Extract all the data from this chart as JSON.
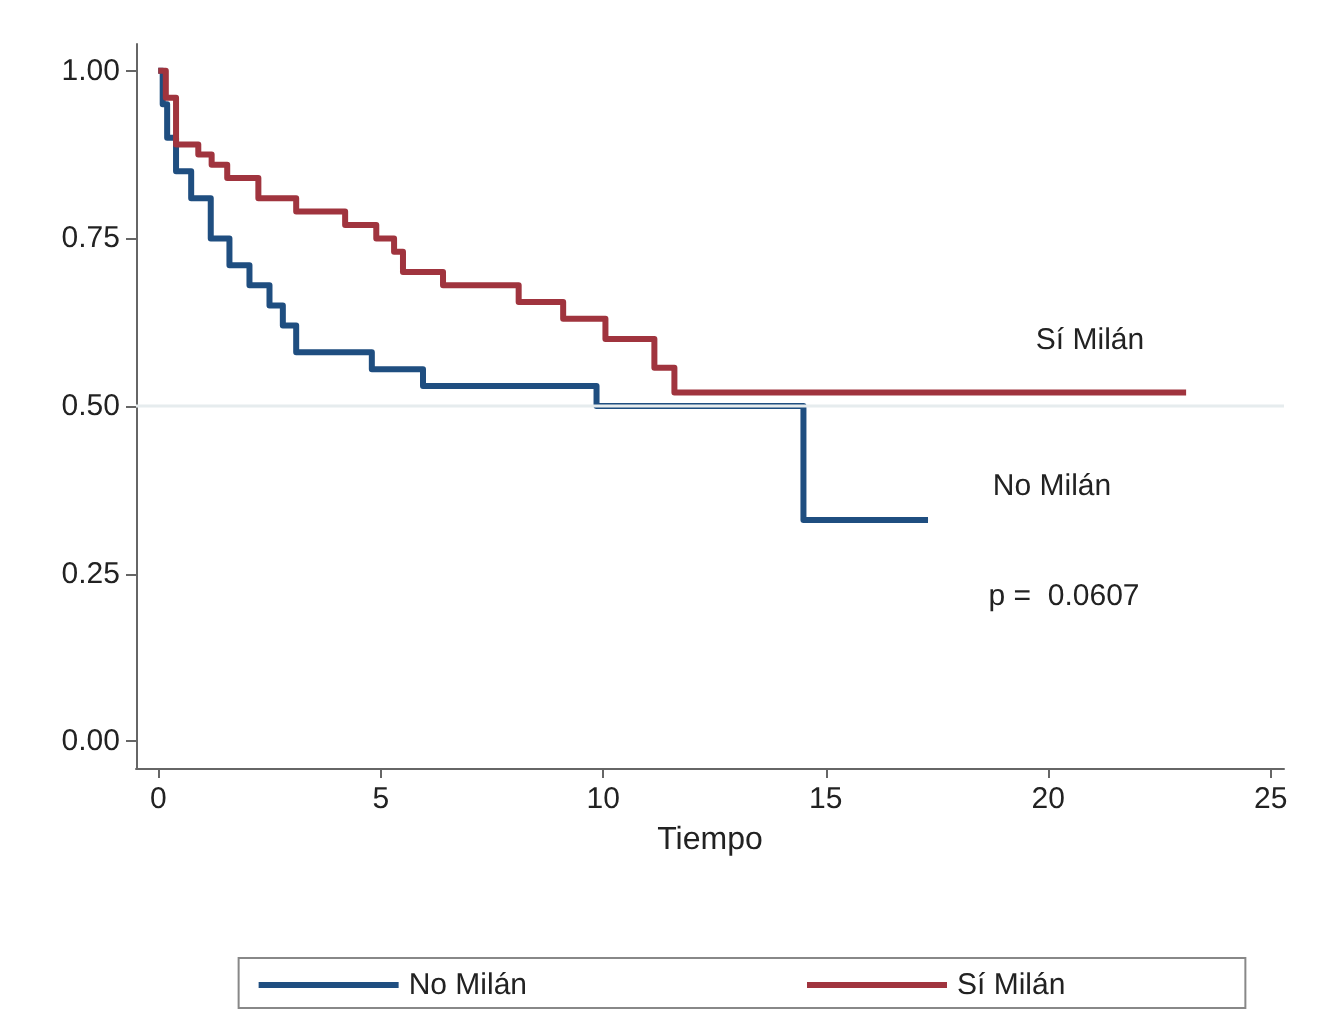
{
  "chart_data": {
    "type": "step",
    "xlabel": "Tiempo",
    "xlim": [
      -0.5,
      25.3
    ],
    "xticks": [
      0,
      5,
      10,
      15,
      20,
      25
    ],
    "ylim": [
      -0.04,
      1.04
    ],
    "yticks": [
      {
        "value": 0,
        "label": "0.00"
      },
      {
        "value": 0.25,
        "label": "0.25"
      },
      {
        "value": 0.5,
        "label": "0.50"
      },
      {
        "value": 0.75,
        "label": "0.75"
      },
      {
        "value": 1,
        "label": "1.00"
      }
    ],
    "series": [
      {
        "name": "No Milán",
        "color": "#1f4e80",
        "x": [
          0,
          0.1,
          0.2,
          0.4,
          0.74,
          1.18,
          1.6,
          2.05,
          2.5,
          2.8,
          3.1,
          4.8,
          5.95,
          9.85,
          14.5,
          17.3
        ],
        "values": [
          1,
          0.95,
          0.9,
          0.85,
          0.81,
          0.75,
          0.71,
          0.68,
          0.65,
          0.62,
          0.58,
          0.555,
          0.53,
          0.5,
          0.33,
          0.33
        ]
      },
      {
        "name": "Sí Milán",
        "color": "#a0343e",
        "x": [
          0,
          0.17,
          0.4,
          0.9,
          1.2,
          1.55,
          2.25,
          3.1,
          4.2,
          4.9,
          5.3,
          5.5,
          6.4,
          8.1,
          9.1,
          10.05,
          11.15,
          11.6,
          23.1
        ],
        "values": [
          1,
          0.96,
          0.89,
          0.875,
          0.86,
          0.84,
          0.81,
          0.79,
          0.77,
          0.75,
          0.73,
          0.7,
          0.68,
          0.655,
          0.63,
          0.6,
          0.557,
          0.52,
          0.52
        ]
      }
    ],
    "ref_lines": [
      {
        "axis": "y",
        "value": 0.5,
        "color": "#e6ecee"
      }
    ],
    "annotations": [
      "Sí Milán",
      "No Milán",
      "p =  0.0607"
    ],
    "legend": "bottom",
    "grid": false
  }
}
